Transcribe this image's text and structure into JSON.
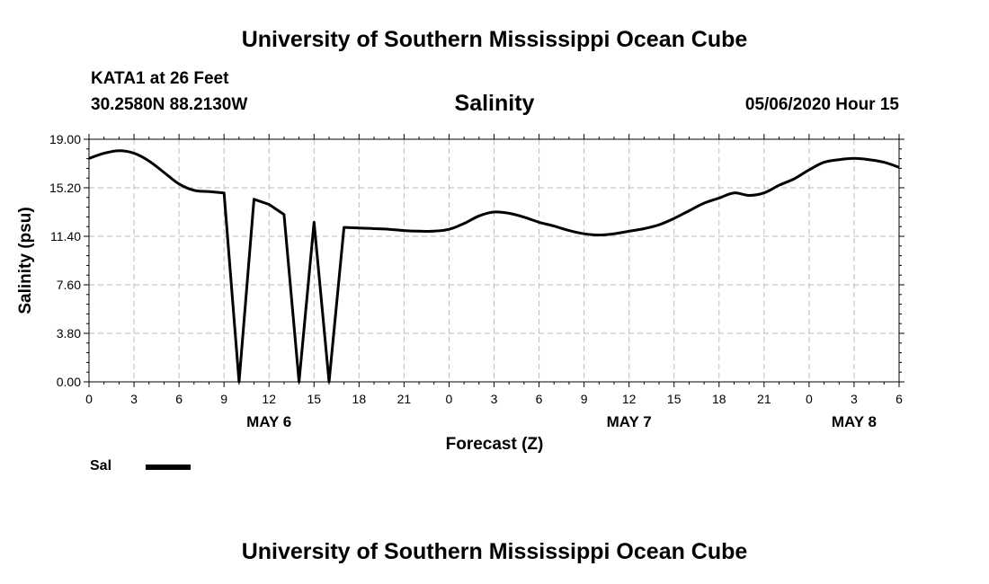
{
  "header": {
    "title": "University of Southern Mississippi Ocean Cube",
    "station": "KATA1 at 26 Feet",
    "coordinates": "30.2580N 88.2130W",
    "datetime": "05/06/2020 Hour 15"
  },
  "footer": {
    "title": "University of Southern Mississippi Ocean Cube"
  },
  "legend": {
    "label": "Sal"
  },
  "chart_data": {
    "type": "line",
    "title": "Salinity",
    "xlabel": "Forecast (Z)",
    "ylabel": "Salinity (psu)",
    "xlim": [
      0,
      54
    ],
    "ylim": [
      0,
      19
    ],
    "yticks": [
      "0.00",
      "3.80",
      "7.60",
      "11.40",
      "15.20",
      "19.00"
    ],
    "xticks": [
      "0",
      "3",
      "6",
      "9",
      "12",
      "15",
      "18",
      "21",
      "0",
      "3",
      "6",
      "9",
      "12",
      "15",
      "18",
      "21",
      "0",
      "3",
      "6"
    ],
    "day_labels": [
      {
        "label": "MAY 6",
        "hour": 12
      },
      {
        "label": "MAY 7",
        "hour": 36
      },
      {
        "label": "MAY 8",
        "hour": 51
      }
    ],
    "grid": true,
    "series": [
      {
        "name": "Sal",
        "color": "#000000",
        "x": [
          0,
          1,
          2,
          3,
          4,
          5,
          6,
          7,
          8,
          9,
          10,
          11,
          12,
          13,
          14,
          15,
          16,
          17,
          18,
          19,
          20,
          21,
          22,
          23,
          24,
          25,
          26,
          27,
          28,
          29,
          30,
          31,
          32,
          33,
          34,
          35,
          36,
          37,
          38,
          39,
          40,
          41,
          42,
          43,
          44,
          45,
          46,
          47,
          48,
          49,
          50,
          51,
          52,
          53,
          54
        ],
        "y": [
          17.5,
          17.9,
          18.1,
          17.9,
          17.3,
          16.4,
          15.5,
          15.0,
          14.9,
          14.8,
          0.0,
          14.3,
          13.9,
          13.1,
          0.0,
          12.5,
          0.0,
          12.1,
          12.05,
          12.0,
          11.95,
          11.85,
          11.8,
          11.8,
          11.95,
          12.4,
          13.0,
          13.3,
          13.2,
          12.9,
          12.5,
          12.2,
          11.85,
          11.6,
          11.5,
          11.6,
          11.8,
          12.0,
          12.3,
          12.8,
          13.4,
          14.0,
          14.4,
          14.8,
          14.6,
          14.8,
          15.4,
          15.9,
          16.6,
          17.2,
          17.4,
          17.5,
          17.4,
          17.2,
          16.8
        ]
      }
    ]
  }
}
